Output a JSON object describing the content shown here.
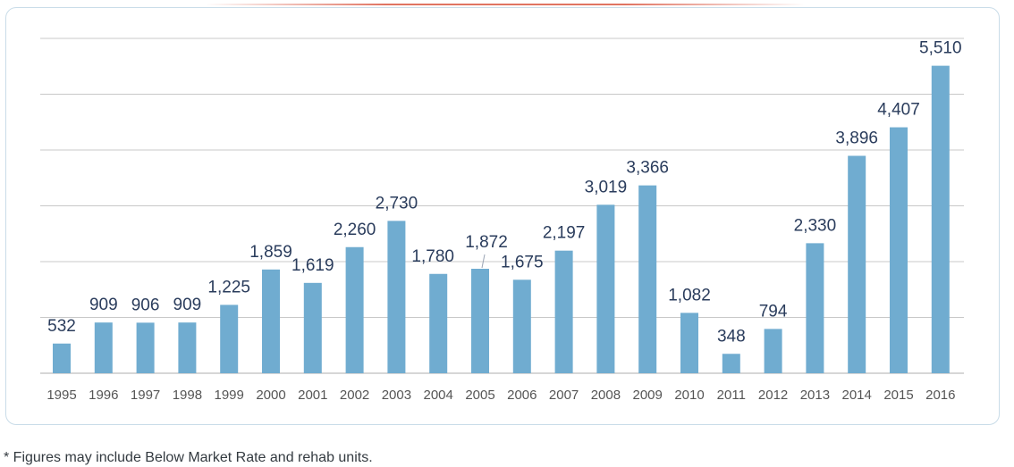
{
  "chart_data": {
    "type": "bar",
    "categories": [
      "1995",
      "1996",
      "1997",
      "1998",
      "1999",
      "2000",
      "2001",
      "2002",
      "2003",
      "2004",
      "2005",
      "2006",
      "2007",
      "2008",
      "2009",
      "2010",
      "2011",
      "2012",
      "2013",
      "2014",
      "2015",
      "2016"
    ],
    "values": [
      532,
      909,
      906,
      909,
      1225,
      1859,
      1619,
      2260,
      2730,
      1780,
      1872,
      1675,
      2197,
      3019,
      3366,
      1082,
      348,
      794,
      2330,
      3896,
      4407,
      5510
    ],
    "value_labels": [
      "532",
      "909",
      "906",
      "909",
      "1,225",
      "1,859",
      "1,619",
      "2,260",
      "2,730",
      "1,780",
      "1,872",
      "1,675",
      "2,197",
      "3,019",
      "3,366",
      "1,082",
      "348",
      "794",
      "2,330",
      "3,896",
      "4,407",
      "5,510"
    ],
    "ylim": [
      0,
      6000
    ],
    "grid": true,
    "bar_color": "#70acd0",
    "grid_color": "#c8c8c8",
    "label_color": "#2a3c5c",
    "tick_color": "#555555"
  },
  "footnote": "* Figures may include Below Market Rate and rehab units."
}
